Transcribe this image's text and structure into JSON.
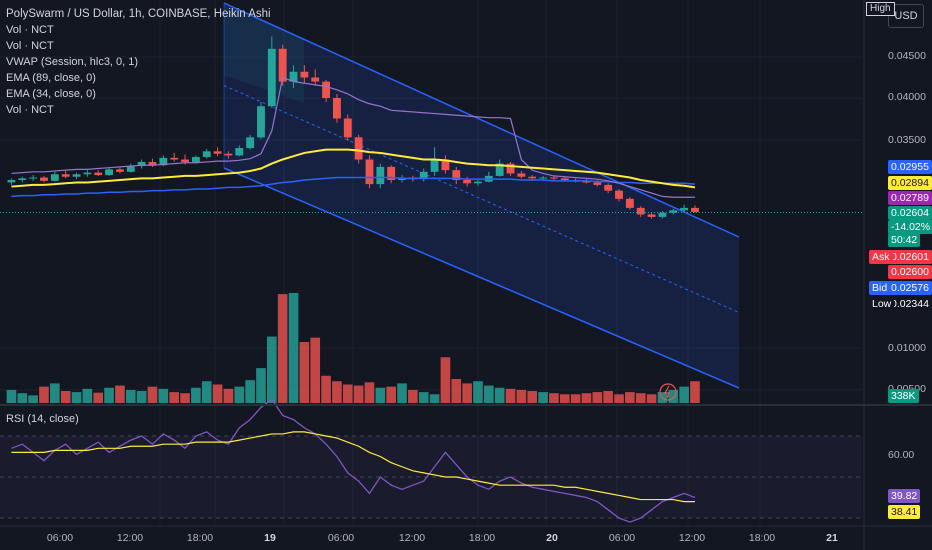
{
  "header": {
    "title": "PolySwarm / US Dollar, 1h, COINBASE, Heikin Ashi",
    "indicators": [
      "Vol · NCT",
      "Vol · NCT",
      "VWAP (Session, hlc3, 0, 1)",
      "EMA (89, close, 0)",
      "EMA (34, close, 0)",
      "Vol · NCT"
    ],
    "currency_button": "USD",
    "high_label": "High"
  },
  "price_axis": {
    "labels": [
      "0.04500",
      "0.04000",
      "0.03500",
      "0.01000",
      "0.00500"
    ]
  },
  "price_tags": [
    {
      "text": "0.02955",
      "bg": "#2962ff",
      "fg": "#ffffff"
    },
    {
      "text": "0.02894",
      "bg": "#ffeb3b",
      "fg": "#131722"
    },
    {
      "text": "0.02789",
      "bg": "#9c27b0",
      "fg": "#ffffff"
    },
    {
      "text": "0.02604",
      "bg": "#089981",
      "fg": "#ffffff"
    },
    {
      "text": "-14.02%",
      "bg": "#089981",
      "fg": "#ffffff"
    },
    {
      "text": "50:42",
      "bg": "#089981",
      "fg": "#ffffff"
    },
    {
      "text": "0.02601",
      "bg": "#f23645",
      "fg": "#ffffff"
    },
    {
      "text": "0.02600",
      "bg": "#f23645",
      "fg": "#ffffff"
    },
    {
      "text": "0.02576",
      "bg": "#2962ff",
      "fg": "#ffffff"
    },
    {
      "text": "0.02344",
      "bg": "#131722",
      "fg": "#ffffff"
    },
    {
      "text": "338K",
      "bg": "#089981",
      "fg": "#ffffff"
    }
  ],
  "side_tags": [
    {
      "text": "Ask",
      "bg": "#f23645"
    },
    {
      "text": "Bid",
      "bg": "#2962ff"
    },
    {
      "text": "Low",
      "bg": "#131722"
    }
  ],
  "rsi": {
    "title": "RSI (14, close)",
    "axis_label": "60.00",
    "value_tags": [
      {
        "text": "39.82",
        "bg": "#7e57c2",
        "fg": "#ffffff"
      },
      {
        "text": "38.41",
        "bg": "#ffeb3b",
        "fg": "#131722"
      }
    ]
  },
  "time_axis": {
    "labels": [
      "06:00",
      "12:00",
      "18:00",
      "19",
      "06:00",
      "12:00",
      "18:00",
      "20",
      "06:00",
      "12:00",
      "18:00",
      "21"
    ],
    "day_flags": [
      false,
      false,
      false,
      true,
      false,
      false,
      false,
      true,
      false,
      false,
      false,
      true
    ]
  },
  "colors": {
    "up": "#26a69a",
    "down": "#ef5350",
    "ema34": "#ffeb3b",
    "ema89": "#2962ff",
    "vwap": "#9575cd",
    "channel": "#2962ff",
    "background": "#131722"
  },
  "chart_data": {
    "type": "candlestick",
    "series_type": "Heikin Ashi",
    "timeframe": "1h",
    "symbol": "PolySwarm / US Dollar",
    "exchange": "COINBASE",
    "ohlc": [
      [
        0.0297,
        0.0302,
        0.0294,
        0.03
      ],
      [
        0.03,
        0.0304,
        0.0297,
        0.0302
      ],
      [
        0.0302,
        0.0306,
        0.0299,
        0.0303
      ],
      [
        0.0303,
        0.0305,
        0.0297,
        0.0299
      ],
      [
        0.0299,
        0.031,
        0.0298,
        0.0307
      ],
      [
        0.0307,
        0.0311,
        0.0302,
        0.0304
      ],
      [
        0.0304,
        0.0309,
        0.0301,
        0.0307
      ],
      [
        0.0307,
        0.0312,
        0.0304,
        0.0309
      ],
      [
        0.0309,
        0.0312,
        0.0305,
        0.0306
      ],
      [
        0.0306,
        0.0316,
        0.0305,
        0.0313
      ],
      [
        0.0313,
        0.0315,
        0.0308,
        0.031
      ],
      [
        0.031,
        0.032,
        0.0309,
        0.0317
      ],
      [
        0.0317,
        0.0325,
        0.0314,
        0.0322
      ],
      [
        0.0322,
        0.0326,
        0.0316,
        0.0318
      ],
      [
        0.0318,
        0.033,
        0.0317,
        0.0327
      ],
      [
        0.0327,
        0.0333,
        0.0322,
        0.0325
      ],
      [
        0.0325,
        0.0331,
        0.0319,
        0.0322
      ],
      [
        0.0322,
        0.033,
        0.032,
        0.0328
      ],
      [
        0.0328,
        0.0338,
        0.0326,
        0.0335
      ],
      [
        0.0335,
        0.034,
        0.0329,
        0.0332
      ],
      [
        0.0332,
        0.0335,
        0.0326,
        0.033
      ],
      [
        0.033,
        0.0342,
        0.0329,
        0.0339
      ],
      [
        0.0339,
        0.0355,
        0.0337,
        0.0352
      ],
      [
        0.0352,
        0.0395,
        0.035,
        0.039
      ],
      [
        0.039,
        0.0475,
        0.0388,
        0.046
      ],
      [
        0.046,
        0.0465,
        0.0415,
        0.042
      ],
      [
        0.042,
        0.044,
        0.0412,
        0.0432
      ],
      [
        0.0432,
        0.044,
        0.0418,
        0.0425
      ],
      [
        0.0425,
        0.0435,
        0.0415,
        0.042
      ],
      [
        0.042,
        0.0422,
        0.0395,
        0.04
      ],
      [
        0.04,
        0.0405,
        0.037,
        0.0375
      ],
      [
        0.0375,
        0.038,
        0.0348,
        0.0352
      ],
      [
        0.0352,
        0.0355,
        0.032,
        0.0325
      ],
      [
        0.0325,
        0.033,
        0.029,
        0.0295
      ],
      [
        0.0295,
        0.032,
        0.029,
        0.0316
      ],
      [
        0.0316,
        0.0318,
        0.0296,
        0.03
      ],
      [
        0.03,
        0.0306,
        0.0297,
        0.0303
      ],
      [
        0.0303,
        0.0305,
        0.0298,
        0.0301
      ],
      [
        0.0301,
        0.0314,
        0.0298,
        0.031
      ],
      [
        0.031,
        0.034,
        0.0305,
        0.0325
      ],
      [
        0.0325,
        0.033,
        0.0308,
        0.0312
      ],
      [
        0.0312,
        0.0316,
        0.0295,
        0.03
      ],
      [
        0.03,
        0.0304,
        0.0292,
        0.0296
      ],
      [
        0.0296,
        0.03,
        0.0293,
        0.0298
      ],
      [
        0.0298,
        0.031,
        0.0297,
        0.0305
      ],
      [
        0.0305,
        0.0325,
        0.0304,
        0.032
      ],
      [
        0.032,
        0.0322,
        0.0305,
        0.0308
      ],
      [
        0.0308,
        0.0311,
        0.0302,
        0.0304
      ],
      [
        0.0304,
        0.0306,
        0.0299,
        0.0302
      ],
      [
        0.0302,
        0.0305,
        0.0299,
        0.0303
      ],
      [
        0.0303,
        0.0305,
        0.03,
        0.0302
      ],
      [
        0.0302,
        0.0303,
        0.0298,
        0.03
      ],
      [
        0.03,
        0.0302,
        0.0297,
        0.0299
      ],
      [
        0.0299,
        0.0301,
        0.0296,
        0.0297
      ],
      [
        0.0297,
        0.03,
        0.0292,
        0.0294
      ],
      [
        0.0294,
        0.0296,
        0.0284,
        0.0287
      ],
      [
        0.0287,
        0.0289,
        0.0274,
        0.0277
      ],
      [
        0.0277,
        0.0279,
        0.0264,
        0.0266
      ],
      [
        0.0266,
        0.0268,
        0.0255,
        0.0258
      ],
      [
        0.0258,
        0.0261,
        0.0253,
        0.0255
      ],
      [
        0.0255,
        0.0262,
        0.0253,
        0.026
      ],
      [
        0.026,
        0.0265,
        0.0258,
        0.0263
      ],
      [
        0.0263,
        0.027,
        0.0261,
        0.0266
      ],
      [
        0.0266,
        0.0269,
        0.026,
        0.0261
      ]
    ],
    "volume": [
      120,
      90,
      70,
      150,
      180,
      110,
      100,
      130,
      95,
      140,
      160,
      120,
      110,
      150,
      130,
      100,
      90,
      140,
      200,
      170,
      130,
      150,
      210,
      320,
      610,
      1000,
      1010,
      560,
      600,
      250,
      200,
      170,
      160,
      190,
      140,
      150,
      180,
      120,
      100,
      80,
      420,
      220,
      180,
      200,
      160,
      140,
      130,
      120,
      110,
      100,
      90,
      80,
      80,
      90,
      100,
      110,
      80,
      100,
      90,
      80,
      100,
      120,
      150,
      200
    ],
    "ema34": [
      0.0292,
      0.0293,
      0.0294,
      0.0294,
      0.0295,
      0.0296,
      0.0297,
      0.0297,
      0.0298,
      0.0299,
      0.03,
      0.0301,
      0.0302,
      0.0302,
      0.0303,
      0.0304,
      0.0305,
      0.0305,
      0.0306,
      0.0307,
      0.0308,
      0.0309,
      0.0311,
      0.0314,
      0.032,
      0.0325,
      0.0329,
      0.0333,
      0.0335,
      0.0337,
      0.0337,
      0.0337,
      0.0336,
      0.0334,
      0.0333,
      0.0331,
      0.0329,
      0.0327,
      0.0325,
      0.0325,
      0.0324,
      0.0322,
      0.032,
      0.0319,
      0.0318,
      0.0318,
      0.0317,
      0.0316,
      0.0315,
      0.0314,
      0.0313,
      0.0312,
      0.0311,
      0.031,
      0.0309,
      0.0307,
      0.0305,
      0.0303,
      0.03,
      0.0298,
      0.0296,
      0.0294,
      0.0293,
      0.0291
    ],
    "ema89": [
      0.028,
      0.0281,
      0.0281,
      0.0282,
      0.0282,
      0.0283,
      0.0283,
      0.0284,
      0.0284,
      0.0285,
      0.0285,
      0.0286,
      0.0286,
      0.0287,
      0.0287,
      0.0288,
      0.0288,
      0.0289,
      0.0289,
      0.029,
      0.0291,
      0.0291,
      0.0292,
      0.0293,
      0.0295,
      0.0297,
      0.0298,
      0.03,
      0.0301,
      0.0302,
      0.0303,
      0.0303,
      0.0303,
      0.0303,
      0.0303,
      0.0303,
      0.0302,
      0.0302,
      0.0302,
      0.0302,
      0.0302,
      0.0302,
      0.0301,
      0.0301,
      0.0301,
      0.0301,
      0.0301,
      0.03,
      0.03,
      0.03,
      0.0299,
      0.0299,
      0.0299,
      0.0299,
      0.0298,
      0.0298,
      0.0297,
      0.0297,
      0.0296,
      0.0296,
      0.0296,
      0.0296,
      0.0296,
      0.0295
    ],
    "vwap": [
      0.0308,
      0.0309,
      0.031,
      0.031,
      0.0311,
      0.0312,
      0.0313,
      0.0313,
      0.0314,
      0.0315,
      0.0316,
      0.0317,
      0.0318,
      0.0318,
      0.0319,
      0.032,
      0.0321,
      0.0321,
      0.0322,
      0.0323,
      0.0323,
      0.0324,
      0.0326,
      0.0332,
      0.036,
      0.0425,
      0.042,
      0.0418,
      0.0416,
      0.0414,
      0.041,
      0.0405,
      0.0398,
      0.0393,
      0.039,
      0.0385,
      0.0384,
      0.0383,
      0.0382,
      0.0381,
      0.038,
      0.0379,
      0.0378,
      0.0377,
      0.0376,
      0.0376,
      0.0375,
      0.0325,
      0.0312,
      0.0308,
      0.0305,
      0.0304,
      0.0303,
      0.0302,
      0.0301,
      0.0299,
      0.0296,
      0.0292,
      0.0288,
      0.0284,
      0.028,
      0.0279,
      0.0279,
      0.0279
    ],
    "rsi": [
      64,
      66,
      62,
      58,
      63,
      66,
      61,
      64,
      67,
      62,
      65,
      68,
      70,
      66,
      71,
      68,
      64,
      70,
      72,
      68,
      66,
      74,
      78,
      84,
      88,
      80,
      78,
      74,
      71,
      66,
      60,
      52,
      48,
      42,
      50,
      46,
      44,
      46,
      48,
      55,
      62,
      56,
      50,
      46,
      44,
      48,
      50,
      47,
      45,
      44,
      43,
      42,
      41,
      40,
      38,
      34,
      30,
      28,
      30,
      34,
      38,
      40,
      42,
      40
    ],
    "rsi_ma": [
      62,
      62,
      62,
      62,
      63,
      63,
      63,
      63,
      64,
      64,
      64,
      65,
      65,
      65,
      66,
      66,
      66,
      67,
      67,
      67,
      67,
      68,
      69,
      70,
      71,
      71,
      72,
      72,
      71,
      70,
      69,
      67,
      65,
      62,
      60,
      57,
      55,
      53,
      52,
      51,
      50,
      50,
      49,
      48,
      47,
      46,
      46,
      46,
      46,
      46,
      46,
      45,
      45,
      44,
      43,
      42,
      41,
      40,
      39,
      39,
      39,
      39,
      38,
      38
    ],
    "price_axis_ticks": [
      0.045,
      0.04,
      0.035,
      0.01,
      0.005
    ],
    "rsi_levels": [
      70,
      60,
      50,
      30
    ],
    "rsi_range": [
      0,
      100
    ],
    "channel": {
      "upper_start": 0.048,
      "lower_start": 0.0305,
      "slope_per_bar": -0.00066,
      "bars": 76
    }
  }
}
